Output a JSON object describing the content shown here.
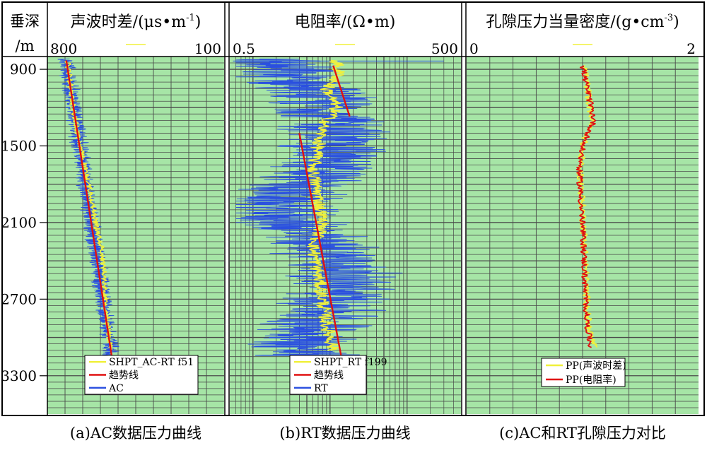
{
  "depth_axis": {
    "label_line1": "垂深",
    "label_line2": "/m",
    "ticks": [
      900,
      1500,
      2100,
      2700,
      3300
    ],
    "ylim": [
      800,
      3600
    ]
  },
  "panels": [
    {
      "id": "ac",
      "title": "声波时差/(μs•m",
      "title_sup": "-1",
      "title_close": ")",
      "axis_left": "800",
      "axis_right": "100",
      "caption": "(a)AC数据压力曲线",
      "legend": [
        "SHPT_AC-RT f51",
        "趋势线",
        "AC"
      ]
    },
    {
      "id": "rt",
      "title": "电阻率/(Ω•m)",
      "title_sup": "",
      "title_close": "",
      "axis_left": "0.5",
      "axis_right": "500",
      "caption": "(b)RT数据压力曲线",
      "legend": [
        "SHPT_RT f199",
        "趋势线",
        "RT"
      ]
    },
    {
      "id": "pp",
      "title": "孔隙压力当量密度/(g•cm",
      "title_sup": "-3",
      "title_close": ")",
      "axis_left": "0",
      "axis_right": "2",
      "caption": "(c)AC和RT孔隙压力对比",
      "legend": [
        "PP(声波时差)",
        "PP(电阻率)"
      ]
    }
  ],
  "colors": {
    "plot_bg": "#a6e5a6",
    "grid": "#4a4a4a",
    "raw_log": "#2a4fe0",
    "pressure": "#f0f03a",
    "trend": "#e01010",
    "frame": "#000000"
  },
  "chart_data": [
    {
      "type": "line",
      "title": "声波时差/(μs•m-1)",
      "x_range": [
        800,
        100
      ],
      "y_range_depth_m": [
        800,
        3600
      ],
      "series": [
        {
          "name": "趋势线",
          "points": [
            [
              725,
              830
            ],
            [
              545,
              3150
            ]
          ]
        },
        {
          "name": "SHPT_AC-RT f51",
          "points": [
            [
              720,
              830
            ],
            [
              705,
              1100
            ],
            [
              690,
              1300
            ],
            [
              670,
              1500
            ],
            [
              650,
              1700
            ],
            [
              625,
              1900
            ],
            [
              610,
              2100
            ],
            [
              585,
              2300
            ],
            [
              575,
              2500
            ],
            [
              570,
              2700
            ],
            [
              560,
              2900
            ],
            [
              550,
              3100
            ]
          ]
        }
      ]
    },
    {
      "type": "line",
      "title": "电阻率/(Ω•m)",
      "x_range": [
        0.5,
        500
      ],
      "x_scale": "log",
      "y_range_depth_m": [
        800,
        3600
      ],
      "series": [
        {
          "name": "趋势线",
          "points": [
            [
              4,
              1400
            ],
            [
              14,
              3150
            ]
          ]
        },
        {
          "name": "趋势线",
          "points": [
            [
              11,
              870
            ],
            [
              18,
              1270
            ]
          ]
        },
        {
          "name": "SHPT_RT f199",
          "points": [
            [
              12,
              830
            ],
            [
              13,
              950
            ],
            [
              9,
              1050
            ],
            [
              12,
              1200
            ],
            [
              8,
              1350
            ],
            [
              7,
              1500
            ],
            [
              6,
              1700
            ],
            [
              7,
              1900
            ],
            [
              8,
              2100
            ],
            [
              6,
              2300
            ],
            [
              7,
              2500
            ],
            [
              8,
              2700
            ],
            [
              9,
              2900
            ],
            [
              11,
              3100
            ]
          ]
        }
      ]
    },
    {
      "type": "line",
      "title": "孔隙压力当量密度/(g•cm-3)",
      "x_range": [
        0,
        2
      ],
      "y_range_depth_m": [
        800,
        3600
      ],
      "series": [
        {
          "name": "PP(声波时差)",
          "points": [
            [
              1.02,
              870
            ],
            [
              1.05,
              1100
            ],
            [
              1.08,
              1300
            ],
            [
              1.0,
              1500
            ],
            [
              0.98,
              1700
            ],
            [
              1.0,
              2000
            ],
            [
              1.02,
              2300
            ],
            [
              1.03,
              2600
            ],
            [
              1.05,
              2900
            ],
            [
              1.1,
              3080
            ]
          ]
        },
        {
          "name": "PP(电阻率)",
          "points": [
            [
              1.0,
              870
            ],
            [
              1.05,
              1100
            ],
            [
              1.1,
              1300
            ],
            [
              1.0,
              1500
            ],
            [
              0.97,
              1700
            ],
            [
              0.99,
              2000
            ],
            [
              1.01,
              2300
            ],
            [
              1.02,
              2600
            ],
            [
              1.04,
              2900
            ],
            [
              1.07,
              3080
            ]
          ]
        }
      ]
    }
  ]
}
